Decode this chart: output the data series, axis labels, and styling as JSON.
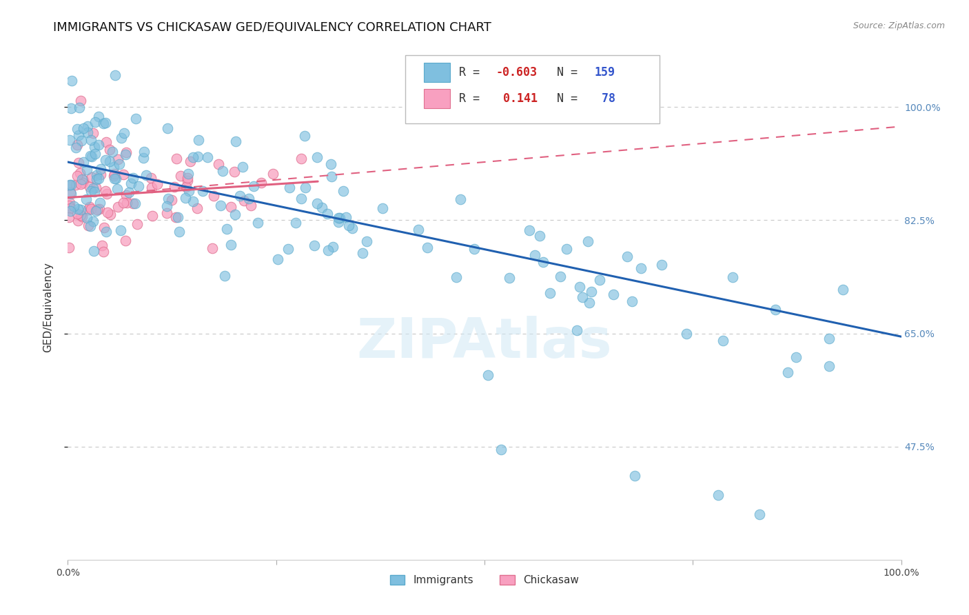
{
  "title": "IMMIGRANTS VS CHICKASAW GED/EQUIVALENCY CORRELATION CHART",
  "source": "Source: ZipAtlas.com",
  "ylabel": "GED/Equivalency",
  "watermark": "ZIPAtlas",
  "xlim": [
    0.0,
    100.0
  ],
  "ylim": [
    30.0,
    108.0
  ],
  "ytick_positions": [
    47.5,
    65.0,
    82.5,
    100.0
  ],
  "ytick_labels": [
    "47.5%",
    "65.0%",
    "82.5%",
    "100.0%"
  ],
  "r_immigrants": -0.603,
  "n_immigrants": 159,
  "r_chickasaw": 0.141,
  "n_chickasaw": 78,
  "blue_color": "#7fbfdf",
  "blue_edge_color": "#5aaacc",
  "blue_line_color": "#2060b0",
  "pink_color": "#f8a0c0",
  "pink_edge_color": "#e07090",
  "pink_line_color": "#e06080",
  "legend_blue_label": "Immigrants",
  "legend_pink_label": "Chickasaw",
  "title_fontsize": 13,
  "source_fontsize": 9,
  "tick_fontsize": 10,
  "right_tick_color": "#5588bb",
  "background_color": "#ffffff",
  "grid_color": "#cccccc",
  "blue_trend_x0": 0.0,
  "blue_trend_y0": 91.5,
  "blue_trend_x1": 100.0,
  "blue_trend_y1": 64.5,
  "pink_solid_x0": 0.0,
  "pink_solid_y0": 86.0,
  "pink_solid_x1": 30.0,
  "pink_solid_y1": 88.5,
  "pink_dash_x0": 0.0,
  "pink_dash_y0": 86.0,
  "pink_dash_x1": 100.0,
  "pink_dash_y1": 97.0
}
